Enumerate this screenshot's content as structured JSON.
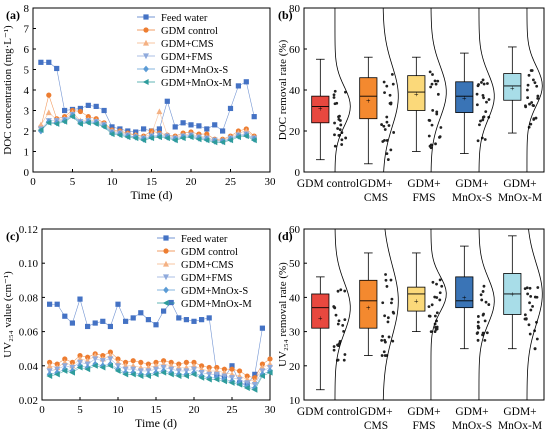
{
  "panels": {
    "a": {
      "label": "(a)",
      "chart_data": {
        "type": "line",
        "ylabel": "DOC concentration (mg·L⁻¹)",
        "xlabel": "Time (d)",
        "xlim": [
          0,
          30
        ],
        "ylim": [
          0,
          8
        ],
        "xticks": [
          0,
          5,
          10,
          15,
          20,
          25,
          30
        ],
        "yticks": [
          0,
          1,
          2,
          3,
          4,
          5,
          6,
          7,
          8
        ],
        "legend_position": "top-right",
        "series": [
          {
            "name": "Feed water",
            "marker": "square",
            "color": "#4472c4",
            "x": [
              1,
              2,
              3,
              4,
              5,
              6,
              7,
              8,
              9,
              10,
              11,
              12,
              13,
              14,
              15,
              16,
              17,
              18,
              19,
              20,
              21,
              22,
              23,
              24,
              25,
              26,
              27,
              28
            ],
            "y": [
              5.35,
              5.35,
              5.05,
              3.0,
              3.05,
              3.1,
              3.25,
              3.2,
              3.0,
              2.2,
              2.1,
              2.0,
              1.95,
              2.1,
              2.0,
              2.1,
              3.45,
              2.2,
              2.4,
              2.3,
              2.25,
              2.1,
              2.3,
              2.0,
              3.1,
              4.2,
              4.4,
              2.7
            ]
          },
          {
            "name": "GDM control",
            "marker": "circle",
            "color": "#ed7d31",
            "x": [
              1,
              2,
              3,
              4,
              5,
              6,
              7,
              8,
              9,
              10,
              11,
              12,
              13,
              14,
              15,
              16,
              17,
              18,
              19,
              20,
              21,
              22,
              23,
              24,
              25,
              26,
              27,
              28
            ],
            "y": [
              2.2,
              3.75,
              2.6,
              2.7,
              3.0,
              2.95,
              2.7,
              2.6,
              2.4,
              2.05,
              2.0,
              1.9,
              1.8,
              1.75,
              2.0,
              1.9,
              1.8,
              1.75,
              1.9,
              1.95,
              1.85,
              1.85,
              1.6,
              1.6,
              1.75,
              2.0,
              2.1,
              1.75
            ]
          },
          {
            "name": "GDM+CMS",
            "marker": "triangle-up",
            "color": "#f4b183",
            "x": [
              1,
              2,
              3,
              4,
              5,
              6,
              7,
              8,
              9,
              10,
              11,
              12,
              13,
              14,
              15,
              16,
              17,
              18,
              19,
              20,
              21,
              22,
              23,
              24,
              25,
              26,
              27,
              28
            ],
            "y": [
              2.3,
              2.9,
              2.55,
              2.6,
              2.9,
              2.5,
              2.55,
              2.5,
              2.35,
              2.0,
              1.95,
              1.85,
              1.8,
              1.7,
              1.85,
              2.95,
              1.8,
              1.7,
              1.8,
              1.85,
              1.75,
              1.7,
              1.55,
              1.55,
              1.7,
              1.9,
              2.0,
              1.7
            ]
          },
          {
            "name": "GDM+FMS",
            "marker": "triangle-down",
            "color": "#8faadc",
            "x": [
              1,
              2,
              3,
              4,
              5,
              6,
              7,
              8,
              9,
              10,
              11,
              12,
              13,
              14,
              15,
              16,
              17,
              18,
              19,
              20,
              21,
              22,
              23,
              24,
              25,
              26,
              27,
              28
            ],
            "y": [
              2.1,
              2.5,
              2.5,
              2.55,
              2.8,
              2.45,
              2.5,
              2.45,
              2.3,
              1.95,
              1.9,
              1.8,
              1.7,
              1.65,
              1.75,
              1.8,
              1.75,
              1.65,
              1.75,
              1.8,
              1.7,
              1.65,
              1.55,
              1.5,
              1.65,
              1.8,
              1.85,
              1.65
            ]
          },
          {
            "name": "GDM+MnOx-S",
            "marker": "diamond",
            "color": "#5b9bd5",
            "x": [
              1,
              2,
              3,
              4,
              5,
              6,
              7,
              8,
              9,
              10,
              11,
              12,
              13,
              14,
              15,
              16,
              17,
              18,
              19,
              20,
              21,
              22,
              23,
              24,
              25,
              26,
              27,
              28
            ],
            "y": [
              2.0,
              2.45,
              2.4,
              2.5,
              2.75,
              2.4,
              2.45,
              2.4,
              2.25,
              1.9,
              1.85,
              1.75,
              1.7,
              1.6,
              1.7,
              1.75,
              1.7,
              1.6,
              1.7,
              1.75,
              1.65,
              1.6,
              1.5,
              1.5,
              1.6,
              1.75,
              1.8,
              1.6
            ]
          },
          {
            "name": "GDM+MnOx-M",
            "marker": "triangle-left",
            "color": "#2e9c9c",
            "x": [
              1,
              2,
              3,
              4,
              5,
              6,
              7,
              8,
              9,
              10,
              11,
              12,
              13,
              14,
              15,
              16,
              17,
              18,
              19,
              20,
              21,
              22,
              23,
              24,
              25,
              26,
              27,
              28
            ],
            "y": [
              2.05,
              2.4,
              2.35,
              2.45,
              2.7,
              2.35,
              2.4,
              2.35,
              2.2,
              1.85,
              1.8,
              1.7,
              1.65,
              1.55,
              1.65,
              1.7,
              1.65,
              1.55,
              1.65,
              1.7,
              1.6,
              1.55,
              1.45,
              1.45,
              1.55,
              1.7,
              1.75,
              1.55
            ]
          }
        ]
      }
    },
    "b": {
      "label": "(b)",
      "chart_data": {
        "type": "box",
        "ylabel": "DOC removal rate (%)",
        "ylim": [
          0,
          80
        ],
        "yticks": [
          0,
          20,
          40,
          60,
          80
        ],
        "categories": [
          "GDM control",
          "GDM+ CMS",
          "GDM+ FMS",
          "GDM+ MnOx-S",
          "GDM+ MnOx-M"
        ],
        "colors": [
          "#e8483f",
          "#f4892f",
          "#fbd97a",
          "#3a74b6",
          "#a8dde8"
        ],
        "boxes": [
          {
            "min": 6,
            "q1": 24,
            "median": 32,
            "q3": 37,
            "max": 55,
            "mean": 31
          },
          {
            "min": 4,
            "q1": 26,
            "median": 37,
            "q3": 46,
            "max": 56,
            "mean": 35
          },
          {
            "min": 10,
            "q1": 30,
            "median": 39,
            "q3": 47,
            "max": 56,
            "mean": 38
          },
          {
            "min": 9,
            "q1": 29,
            "median": 37,
            "q3": 44,
            "max": 58,
            "mean": 36
          },
          {
            "min": 19,
            "q1": 35,
            "median": 42,
            "q3": 48,
            "max": 61,
            "mean": 41
          }
        ]
      }
    },
    "c": {
      "label": "(c)",
      "chart_data": {
        "type": "line",
        "ylabel": "UV₂₅₄ value (cm⁻¹)",
        "xlabel": "Time (d)",
        "xlim": [
          0,
          30
        ],
        "ylim": [
          0.02,
          0.12
        ],
        "xticks": [
          0,
          5,
          10,
          15,
          20,
          25,
          30
        ],
        "yticks": [
          0.02,
          0.04,
          0.06,
          0.08,
          0.1,
          0.12
        ],
        "ytick_labels": [
          "0.02",
          "0.04",
          "0.06",
          "0.08",
          "0.10",
          "0.12"
        ],
        "legend_position": "top-right",
        "series": [
          {
            "name": "Feed water",
            "marker": "square",
            "color": "#4472c4",
            "x": [
              1,
              2,
              3,
              4,
              5,
              6,
              7,
              8,
              9,
              10,
              11,
              12,
              13,
              14,
              15,
              16,
              17,
              18,
              19,
              20,
              21,
              22,
              23,
              24,
              25,
              26,
              27,
              28,
              29
            ],
            "y": [
              0.076,
              0.076,
              0.069,
              0.065,
              0.079,
              0.063,
              0.065,
              0.066,
              0.063,
              0.076,
              0.066,
              0.068,
              0.071,
              0.067,
              0.064,
              0.072,
              0.077,
              0.068,
              0.067,
              0.066,
              0.067,
              0.068,
              0.035,
              0.033,
              0.04,
              0.03,
              0.029,
              0.035,
              0.062
            ]
          },
          {
            "name": "GDM control",
            "marker": "circle",
            "color": "#ed7d31",
            "x": [
              1,
              2,
              3,
              4,
              5,
              6,
              7,
              8,
              9,
              10,
              11,
              12,
              13,
              14,
              15,
              16,
              17,
              18,
              19,
              20,
              21,
              22,
              23,
              24,
              25,
              26,
              27,
              28,
              29,
              30
            ],
            "y": [
              0.042,
              0.041,
              0.044,
              0.042,
              0.046,
              0.045,
              0.047,
              0.046,
              0.048,
              0.044,
              0.042,
              0.043,
              0.042,
              0.041,
              0.042,
              0.043,
              0.042,
              0.041,
              0.042,
              0.042,
              0.04,
              0.039,
              0.039,
              0.038,
              0.038,
              0.037,
              0.034,
              0.033,
              0.041,
              0.044
            ]
          },
          {
            "name": "GDM+CMS",
            "marker": "triangle-up",
            "color": "#f4b183",
            "x": [
              1,
              2,
              3,
              4,
              5,
              6,
              7,
              8,
              9,
              10,
              11,
              12,
              13,
              14,
              15,
              16,
              17,
              18,
              19,
              20,
              21,
              22,
              23,
              24,
              25,
              26,
              27,
              28,
              29,
              30
            ],
            "y": [
              0.04,
              0.039,
              0.042,
              0.04,
              0.044,
              0.043,
              0.046,
              0.044,
              0.046,
              0.042,
              0.04,
              0.04,
              0.039,
              0.039,
              0.04,
              0.041,
              0.04,
              0.039,
              0.039,
              0.04,
              0.038,
              0.037,
              0.037,
              0.036,
              0.035,
              0.034,
              0.032,
              0.031,
              0.039,
              0.041
            ]
          },
          {
            "name": "GDM+FMS",
            "marker": "triangle-down",
            "color": "#8faadc",
            "x": [
              1,
              2,
              3,
              4,
              5,
              6,
              7,
              8,
              9,
              10,
              11,
              12,
              13,
              14,
              15,
              16,
              17,
              18,
              19,
              20,
              21,
              22,
              23,
              24,
              25,
              26,
              27,
              28,
              29,
              30
            ],
            "y": [
              0.037,
              0.038,
              0.04,
              0.039,
              0.042,
              0.041,
              0.044,
              0.043,
              0.044,
              0.04,
              0.038,
              0.038,
              0.037,
              0.037,
              0.038,
              0.039,
              0.038,
              0.037,
              0.037,
              0.038,
              0.036,
              0.035,
              0.035,
              0.034,
              0.033,
              0.032,
              0.03,
              0.029,
              0.037,
              0.039
            ]
          },
          {
            "name": "GDM+MnOx-S",
            "marker": "diamond",
            "color": "#5b9bd5",
            "x": [
              1,
              2,
              3,
              4,
              5,
              6,
              7,
              8,
              9,
              10,
              11,
              12,
              13,
              14,
              15,
              16,
              17,
              18,
              19,
              20,
              21,
              22,
              23,
              24,
              25,
              26,
              27,
              28,
              29,
              30
            ],
            "y": [
              0.035,
              0.036,
              0.038,
              0.037,
              0.04,
              0.039,
              0.041,
              0.04,
              0.041,
              0.038,
              0.036,
              0.036,
              0.035,
              0.035,
              0.036,
              0.037,
              0.036,
              0.035,
              0.035,
              0.036,
              0.034,
              0.033,
              0.033,
              0.032,
              0.031,
              0.03,
              0.028,
              0.027,
              0.035,
              0.037
            ]
          },
          {
            "name": "GDM+MnOx-M",
            "marker": "triangle-left",
            "color": "#2e9c9c",
            "x": [
              1,
              2,
              3,
              4,
              5,
              6,
              7,
              8,
              9,
              10,
              11,
              12,
              13,
              14,
              15,
              16,
              17,
              18,
              19,
              20,
              21,
              22,
              23,
              24,
              25,
              26,
              27,
              28,
              29,
              30
            ],
            "y": [
              0.034,
              0.035,
              0.037,
              0.036,
              0.039,
              0.038,
              0.04,
              0.039,
              0.04,
              0.037,
              0.035,
              0.035,
              0.034,
              0.034,
              0.035,
              0.036,
              0.035,
              0.034,
              0.034,
              0.035,
              0.033,
              0.032,
              0.032,
              0.031,
              0.03,
              0.029,
              0.027,
              0.026,
              0.034,
              0.036
            ]
          }
        ]
      }
    },
    "d": {
      "label": "(d)",
      "chart_data": {
        "type": "box",
        "ylabel": "UV₂₅₄ removal rate (%)",
        "ylim": [
          10,
          60
        ],
        "yticks": [
          10,
          20,
          30,
          40,
          50,
          60
        ],
        "categories": [
          "GDM control",
          "GDM+ CMS",
          "GDM+ FMS",
          "GDM+ MnOx-S",
          "GDM+ MnOx-M"
        ],
        "colors": [
          "#e8483f",
          "#f4892f",
          "#fbd97a",
          "#3a74b6",
          "#a8dde8"
        ],
        "boxes": [
          {
            "min": 13,
            "q1": 31,
            "median": 37,
            "q3": 41,
            "max": 46,
            "mean": 34
          },
          {
            "min": 23,
            "q1": 31,
            "median": 39,
            "q3": 45,
            "max": 53,
            "mean": 37
          },
          {
            "min": 30,
            "q1": 36,
            "median": 41,
            "q3": 43,
            "max": 53,
            "mean": 39
          },
          {
            "min": 25,
            "q1": 37,
            "median": 39,
            "q3": 46,
            "max": 55,
            "mean": 40
          },
          {
            "min": 25,
            "q1": 35,
            "median": 41,
            "q3": 47,
            "max": 58,
            "mean": 41
          }
        ]
      }
    }
  }
}
